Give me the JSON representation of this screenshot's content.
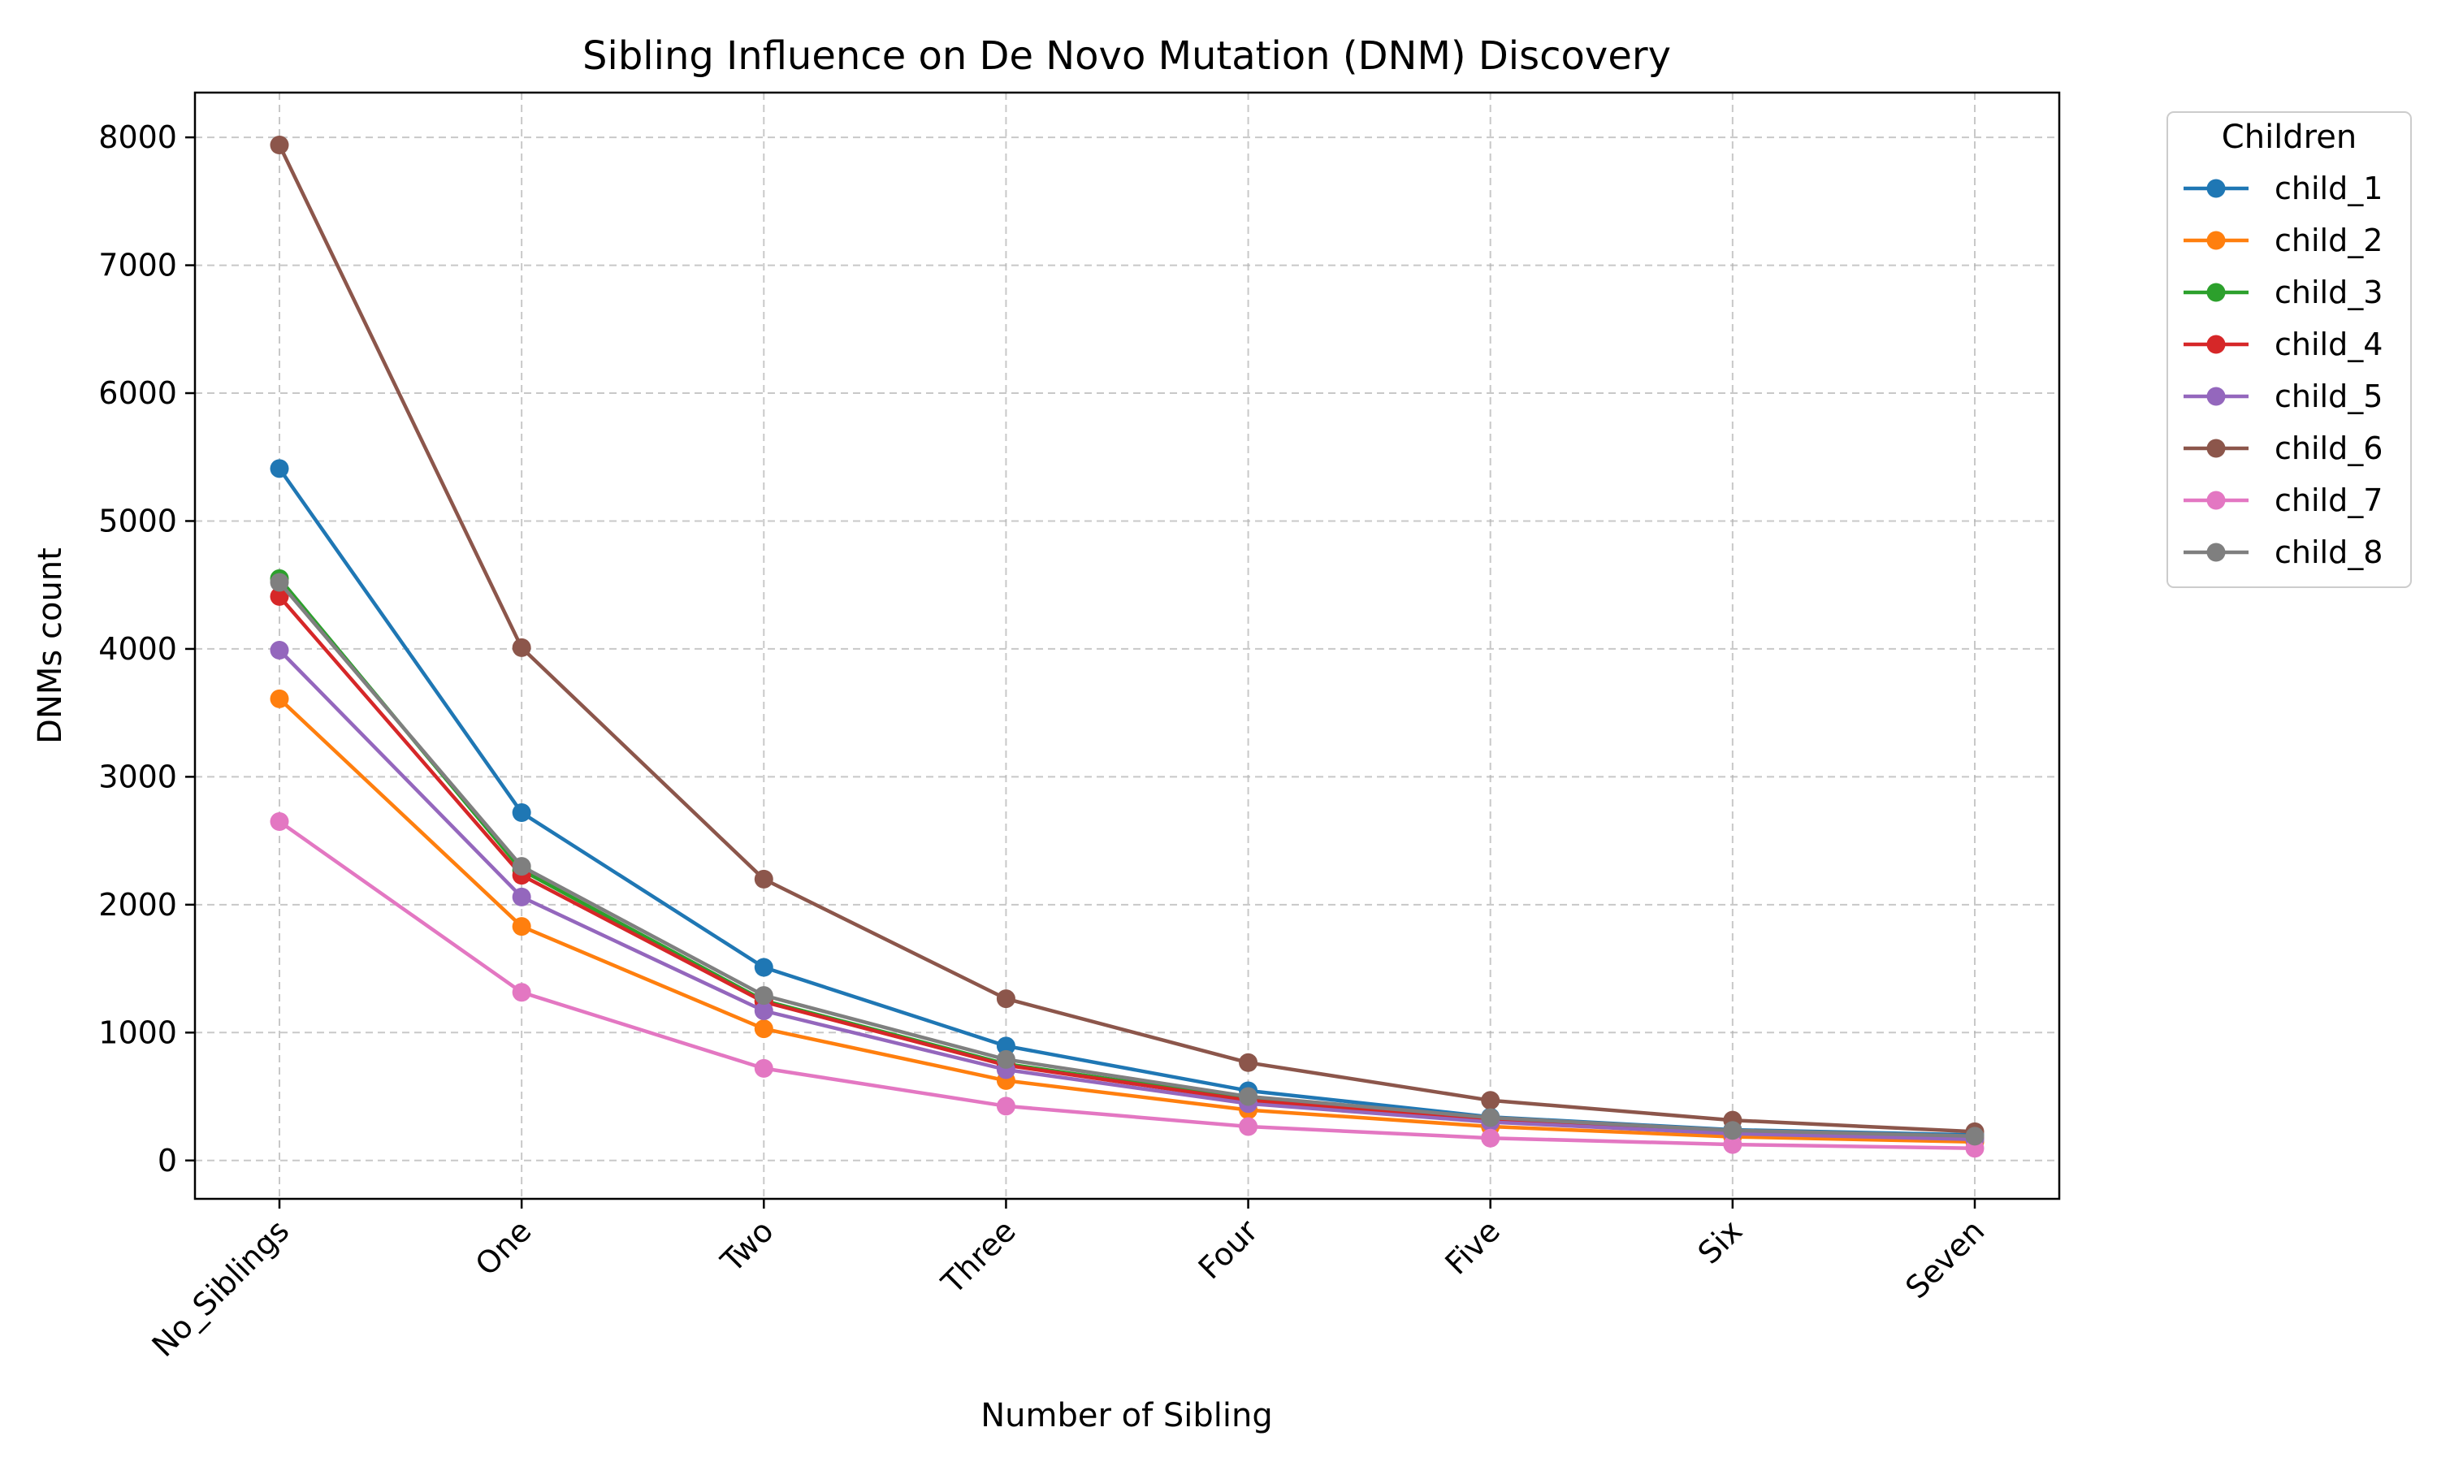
{
  "chart_data": {
    "type": "line",
    "title": "Sibling Influence on De Novo Mutation (DNM) Discovery",
    "xlabel": "Number of Sibling",
    "ylabel": "DNMs count",
    "categories": [
      "No_Siblings",
      "One",
      "Two",
      "Three",
      "Four",
      "Five",
      "Six",
      "Seven"
    ],
    "ylim": [
      -300,
      8350
    ],
    "yticks": [
      0,
      1000,
      2000,
      3000,
      4000,
      5000,
      6000,
      7000,
      8000
    ],
    "grid": true,
    "legend": {
      "title": "Children",
      "placement": "outside-top-right"
    },
    "series": [
      {
        "name": "child_1",
        "color": "#1f77b4",
        "values": [
          5410,
          2720,
          1510,
          895,
          545,
          340,
          240,
          200
        ]
      },
      {
        "name": "child_2",
        "color": "#ff7f0e",
        "values": [
          3610,
          1830,
          1030,
          625,
          395,
          265,
          185,
          145
        ]
      },
      {
        "name": "child_3",
        "color": "#2ca02c",
        "values": [
          4550,
          2270,
          1250,
          755,
          480,
          320,
          225,
          180
        ]
      },
      {
        "name": "child_4",
        "color": "#d62728",
        "values": [
          4410,
          2230,
          1240,
          745,
          470,
          315,
          220,
          175
        ]
      },
      {
        "name": "child_5",
        "color": "#9467bd",
        "values": [
          3990,
          2060,
          1170,
          710,
          445,
          300,
          210,
          165
        ]
      },
      {
        "name": "child_6",
        "color": "#8c564b",
        "values": [
          7940,
          4010,
          2200,
          1265,
          765,
          470,
          315,
          225
        ]
      },
      {
        "name": "child_7",
        "color": "#e377c2",
        "values": [
          2650,
          1315,
          720,
          425,
          265,
          175,
          125,
          95
        ]
      },
      {
        "name": "child_8",
        "color": "#7f7f7f",
        "values": [
          4520,
          2300,
          1290,
          790,
          500,
          335,
          235,
          190
        ]
      }
    ]
  }
}
